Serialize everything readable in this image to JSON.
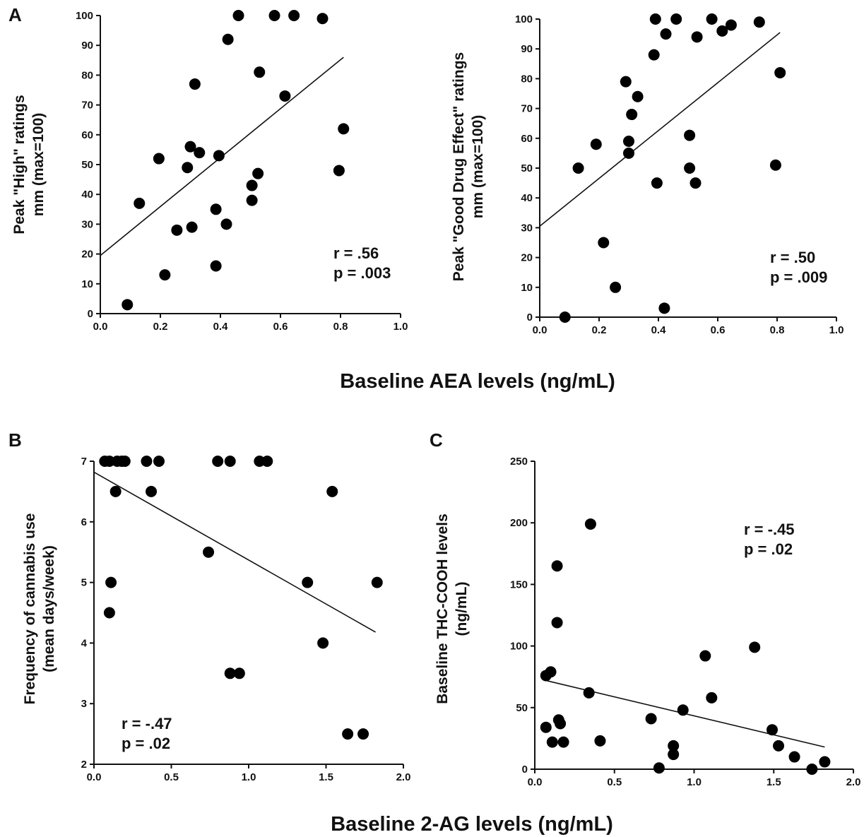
{
  "shared_labels": {
    "aea_xlabel": "Baseline AEA levels (ng/mL)",
    "ag_xlabel": "Baseline 2-AG levels (ng/mL)"
  },
  "chart_data": [
    {
      "panel": "A",
      "type": "scatter",
      "ylabel_lines": [
        "Peak \"High\" ratings",
        "mm (max=100)"
      ],
      "xlim": [
        0,
        1.0
      ],
      "ylim": [
        0,
        100
      ],
      "xticks": [
        0.0,
        0.2,
        0.4,
        0.6,
        0.8,
        1.0
      ],
      "xtick_labels": [
        "0.0",
        "0.2",
        "0.4",
        "0.6",
        "0.8",
        "1.0"
      ],
      "yticks": [
        0,
        10,
        20,
        30,
        40,
        50,
        60,
        70,
        80,
        90,
        100
      ],
      "ytick_labels": [
        "0",
        "10",
        "20",
        "30",
        "40",
        "50",
        "60",
        "70",
        "80",
        "90",
        "100"
      ],
      "stats": [
        "r = .56",
        "p = .003"
      ],
      "regression": {
        "x": [
          0.0,
          0.81
        ],
        "y": [
          19.5,
          86
        ]
      },
      "points": [
        {
          "x": 0.09,
          "y": 3
        },
        {
          "x": 0.13,
          "y": 37
        },
        {
          "x": 0.195,
          "y": 52
        },
        {
          "x": 0.215,
          "y": 13
        },
        {
          "x": 0.255,
          "y": 28
        },
        {
          "x": 0.29,
          "y": 49
        },
        {
          "x": 0.3,
          "y": 56
        },
        {
          "x": 0.305,
          "y": 29
        },
        {
          "x": 0.315,
          "y": 77
        },
        {
          "x": 0.33,
          "y": 54
        },
        {
          "x": 0.385,
          "y": 35
        },
        {
          "x": 0.385,
          "y": 16
        },
        {
          "x": 0.395,
          "y": 53
        },
        {
          "x": 0.42,
          "y": 30
        },
        {
          "x": 0.425,
          "y": 92
        },
        {
          "x": 0.46,
          "y": 100
        },
        {
          "x": 0.505,
          "y": 43
        },
        {
          "x": 0.505,
          "y": 38
        },
        {
          "x": 0.525,
          "y": 47
        },
        {
          "x": 0.53,
          "y": 81
        },
        {
          "x": 0.58,
          "y": 100
        },
        {
          "x": 0.615,
          "y": 73
        },
        {
          "x": 0.645,
          "y": 100
        },
        {
          "x": 0.74,
          "y": 99
        },
        {
          "x": 0.795,
          "y": 48
        },
        {
          "x": 0.81,
          "y": 62
        }
      ]
    },
    {
      "panel": "",
      "type": "scatter",
      "ylabel_lines": [
        "Peak \"Good Drug Effect\" ratings",
        "mm (max=100)"
      ],
      "xlim": [
        0,
        1.0
      ],
      "ylim": [
        0,
        100
      ],
      "xticks": [
        0.0,
        0.2,
        0.4,
        0.6,
        0.8,
        1.0
      ],
      "xtick_labels": [
        "0.0",
        "0.2",
        "0.4",
        "0.6",
        "0.8",
        "1.0"
      ],
      "yticks": [
        0,
        10,
        20,
        30,
        40,
        50,
        60,
        70,
        80,
        90,
        100
      ],
      "ytick_labels": [
        "0",
        "10",
        "20",
        "30",
        "40",
        "50",
        "60",
        "70",
        "80",
        "90",
        "100"
      ],
      "stats": [
        "r = .50",
        "p = .009"
      ],
      "regression": {
        "x": [
          0.0,
          0.81
        ],
        "y": [
          30.5,
          95.5
        ]
      },
      "points": [
        {
          "x": 0.085,
          "y": 0
        },
        {
          "x": 0.13,
          "y": 50
        },
        {
          "x": 0.19,
          "y": 58
        },
        {
          "x": 0.215,
          "y": 25
        },
        {
          "x": 0.255,
          "y": 10
        },
        {
          "x": 0.29,
          "y": 79
        },
        {
          "x": 0.3,
          "y": 55
        },
        {
          "x": 0.3,
          "y": 59
        },
        {
          "x": 0.31,
          "y": 68
        },
        {
          "x": 0.33,
          "y": 74
        },
        {
          "x": 0.385,
          "y": 88
        },
        {
          "x": 0.39,
          "y": 100
        },
        {
          "x": 0.395,
          "y": 45
        },
        {
          "x": 0.42,
          "y": 3
        },
        {
          "x": 0.425,
          "y": 95
        },
        {
          "x": 0.46,
          "y": 100
        },
        {
          "x": 0.505,
          "y": 61
        },
        {
          "x": 0.505,
          "y": 50
        },
        {
          "x": 0.525,
          "y": 45
        },
        {
          "x": 0.53,
          "y": 94
        },
        {
          "x": 0.58,
          "y": 100
        },
        {
          "x": 0.615,
          "y": 96
        },
        {
          "x": 0.645,
          "y": 98
        },
        {
          "x": 0.74,
          "y": 99
        },
        {
          "x": 0.795,
          "y": 51
        },
        {
          "x": 0.81,
          "y": 82
        }
      ]
    },
    {
      "panel": "B",
      "type": "scatter",
      "ylabel_lines": [
        "Frequency of cannabis use",
        "(mean days/week)"
      ],
      "xlim": [
        0,
        2.0
      ],
      "ylim": [
        2,
        7
      ],
      "xticks": [
        0.0,
        0.5,
        1.0,
        1.5,
        2.0
      ],
      "xtick_labels": [
        "0.0",
        "0.5",
        "1.0",
        "1.5",
        "2.0"
      ],
      "yticks": [
        2,
        3,
        4,
        5,
        6,
        7
      ],
      "ytick_labels": [
        "2",
        "3",
        "4",
        "5",
        "6",
        "7"
      ],
      "stats": [
        "r = -.47",
        "p = .02"
      ],
      "regression": {
        "x": [
          0.0,
          1.82
        ],
        "y": [
          6.82,
          4.18
        ]
      },
      "points": [
        {
          "x": 0.07,
          "y": 7
        },
        {
          "x": 0.1,
          "y": 7
        },
        {
          "x": 0.15,
          "y": 7
        },
        {
          "x": 0.18,
          "y": 7
        },
        {
          "x": 0.2,
          "y": 7
        },
        {
          "x": 0.34,
          "y": 7
        },
        {
          "x": 0.42,
          "y": 7
        },
        {
          "x": 0.8,
          "y": 7
        },
        {
          "x": 0.88,
          "y": 7
        },
        {
          "x": 1.07,
          "y": 7
        },
        {
          "x": 1.12,
          "y": 7
        },
        {
          "x": 0.14,
          "y": 6.5
        },
        {
          "x": 0.37,
          "y": 6.5
        },
        {
          "x": 1.54,
          "y": 6.5
        },
        {
          "x": 0.74,
          "y": 5.5
        },
        {
          "x": 0.11,
          "y": 5
        },
        {
          "x": 1.38,
          "y": 5
        },
        {
          "x": 1.83,
          "y": 5
        },
        {
          "x": 0.1,
          "y": 4.5
        },
        {
          "x": 1.48,
          "y": 4
        },
        {
          "x": 0.88,
          "y": 3.5
        },
        {
          "x": 0.94,
          "y": 3.5
        },
        {
          "x": 1.64,
          "y": 2.5
        },
        {
          "x": 1.74,
          "y": 2.5
        }
      ]
    },
    {
      "panel": "C",
      "type": "scatter",
      "ylabel_lines": [
        "Baseline THC-COOH levels",
        "(ng/mL)"
      ],
      "xlim": [
        0,
        2.0
      ],
      "ylim": [
        0,
        250
      ],
      "xticks": [
        0.0,
        0.5,
        1.0,
        1.5,
        2.0
      ],
      "xtick_labels": [
        "0.0",
        "0.5",
        "1.0",
        "1.5",
        "2.0"
      ],
      "yticks": [
        0,
        50,
        100,
        150,
        200,
        250
      ],
      "ytick_labels": [
        "0",
        "50",
        "100",
        "150",
        "200",
        "250"
      ],
      "stats": [
        "r = -.45",
        "p = .02"
      ],
      "regression": {
        "x": [
          0.07,
          1.82
        ],
        "y": [
          72,
          18
        ]
      },
      "points": [
        {
          "x": 0.35,
          "y": 199
        },
        {
          "x": 0.14,
          "y": 165
        },
        {
          "x": 0.14,
          "y": 119
        },
        {
          "x": 0.07,
          "y": 76
        },
        {
          "x": 0.1,
          "y": 79
        },
        {
          "x": 0.15,
          "y": 40
        },
        {
          "x": 0.07,
          "y": 34
        },
        {
          "x": 0.16,
          "y": 37
        },
        {
          "x": 0.11,
          "y": 22
        },
        {
          "x": 0.18,
          "y": 22
        },
        {
          "x": 0.34,
          "y": 62
        },
        {
          "x": 0.41,
          "y": 23
        },
        {
          "x": 0.73,
          "y": 41
        },
        {
          "x": 0.78,
          "y": 1
        },
        {
          "x": 0.87,
          "y": 19
        },
        {
          "x": 0.87,
          "y": 12
        },
        {
          "x": 0.93,
          "y": 48
        },
        {
          "x": 1.07,
          "y": 92
        },
        {
          "x": 1.11,
          "y": 58
        },
        {
          "x": 1.38,
          "y": 99
        },
        {
          "x": 1.49,
          "y": 32
        },
        {
          "x": 1.53,
          "y": 19
        },
        {
          "x": 1.63,
          "y": 10
        },
        {
          "x": 1.74,
          "y": 0
        },
        {
          "x": 1.82,
          "y": 6
        }
      ]
    }
  ]
}
